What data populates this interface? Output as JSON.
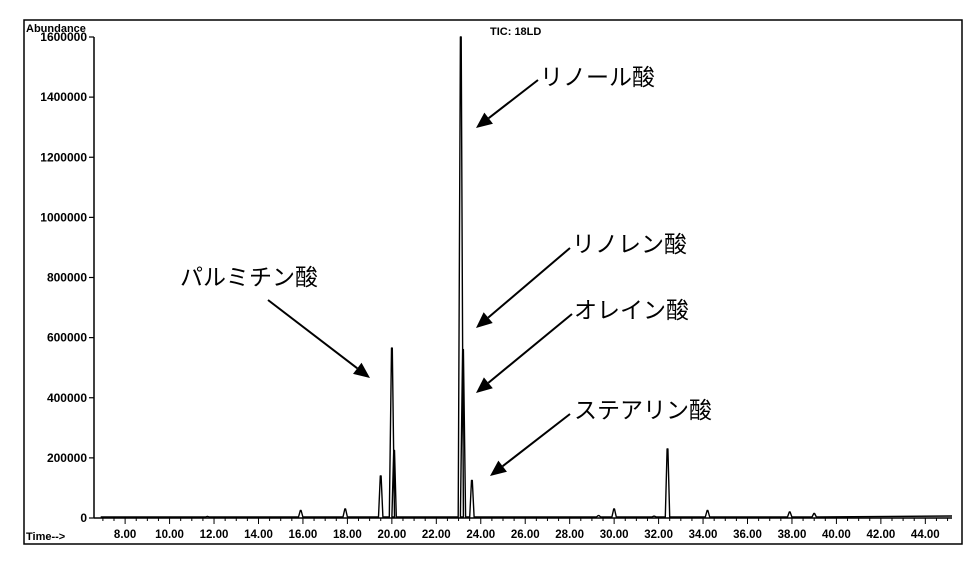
{
  "chart_data": {
    "type": "line",
    "title": "TIC: 18LD",
    "ylabel": "Abundance",
    "xlabel": "Time-->",
    "xlim": [
      6.6,
      45.2
    ],
    "ylim": [
      0,
      1600000
    ],
    "grid": false,
    "x_ticks": [
      "8.00",
      "10.00",
      "12.00",
      "14.00",
      "16.00",
      "18.00",
      "20.00",
      "22.00",
      "24.00",
      "26.00",
      "28.00",
      "30.00",
      "32.00",
      "34.00",
      "36.00",
      "38.00",
      "40.00",
      "42.00",
      "44.00"
    ],
    "y_ticks": [
      "0",
      "200000",
      "400000",
      "600000",
      "800000",
      "1000000",
      "1200000",
      "1400000",
      "1600000"
    ],
    "peaks": [
      {
        "x": 11.7,
        "y": 5000
      },
      {
        "x": 15.9,
        "y": 25000
      },
      {
        "x": 17.9,
        "y": 30000
      },
      {
        "x": 19.5,
        "y": 140000
      },
      {
        "x": 20.0,
        "y": 565000
      },
      {
        "x": 20.1,
        "y": 225000
      },
      {
        "x": 23.1,
        "y": 1600000
      },
      {
        "x": 23.2,
        "y": 560000
      },
      {
        "x": 23.6,
        "y": 125000
      },
      {
        "x": 29.3,
        "y": 8000
      },
      {
        "x": 30.0,
        "y": 30000
      },
      {
        "x": 31.8,
        "y": 6000
      },
      {
        "x": 32.4,
        "y": 230000
      },
      {
        "x": 34.2,
        "y": 25000
      },
      {
        "x": 37.9,
        "y": 20000
      },
      {
        "x": 39.0,
        "y": 15000
      }
    ],
    "annotations": [
      {
        "label": "パルミチン酸",
        "target_x": 19.9,
        "target_y": 440000
      },
      {
        "label": "リノール酸",
        "target_x": 23.3,
        "target_y": 1290000
      },
      {
        "label": "リノレン酸",
        "target_x": 23.3,
        "target_y": 630000
      },
      {
        "label": "オレイン酸",
        "target_x": 23.3,
        "target_y": 410000
      },
      {
        "label": "ステアリン酸",
        "target_x": 23.8,
        "target_y": 135000
      }
    ]
  }
}
